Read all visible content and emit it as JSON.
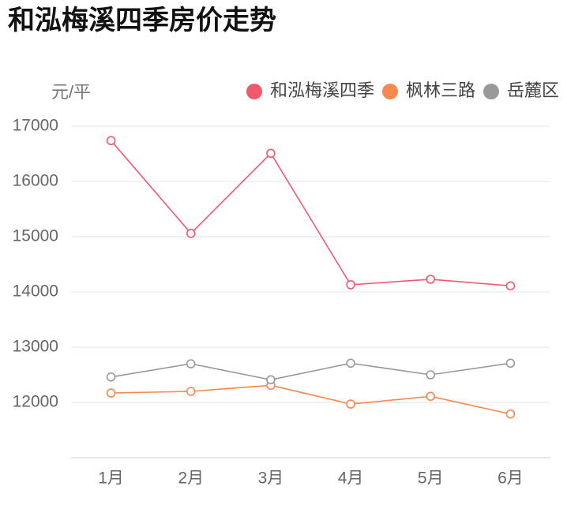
{
  "chart_data": {
    "type": "line",
    "title": "和泓梅溪四季房价走势",
    "y_label": "元/平",
    "categories": [
      "1月",
      "2月",
      "3月",
      "4月",
      "5月",
      "6月"
    ],
    "series": [
      {
        "name": "和泓梅溪四季",
        "color": "#f2596e",
        "values": [
          16740,
          15060,
          16510,
          14130,
          14230,
          14110
        ]
      },
      {
        "name": "枫林三路",
        "color": "#f6894f",
        "values": [
          12170,
          12200,
          12310,
          11970,
          12110,
          11790
        ]
      },
      {
        "name": "岳麓区",
        "color": "#999999",
        "values": [
          12460,
          12700,
          12410,
          12710,
          12500,
          12710
        ]
      }
    ],
    "ylim": [
      11000,
      17000
    ],
    "yticks": [
      12000,
      13000,
      14000,
      15000,
      16000,
      17000
    ],
    "grid": true
  }
}
